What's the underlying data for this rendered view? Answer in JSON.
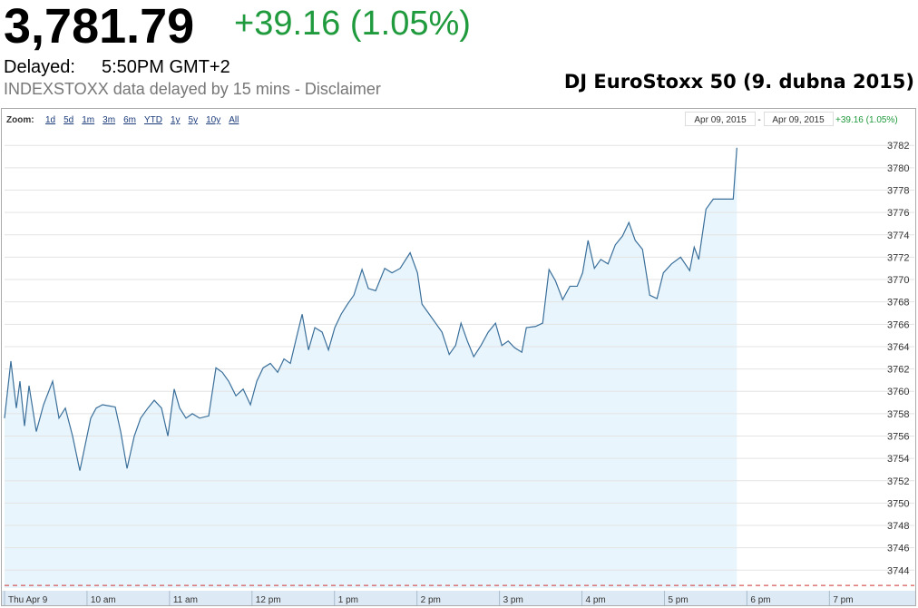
{
  "header": {
    "price": "3,781.79",
    "change": "+39.16 (1.05%)",
    "delayed_label": "Delayed:",
    "time": "5:50PM GMT+2",
    "source": "INDEXSTOXX data delayed by 15 mins - Disclaimer",
    "caption": "DJ EuroStoxx 50 (9. dubna 2015)"
  },
  "toolbar": {
    "zoom_label": "Zoom:",
    "zoom_options": [
      "1d",
      "5d",
      "1m",
      "3m",
      "6m",
      "YTD",
      "1y",
      "5y",
      "10y",
      "All"
    ],
    "range_start": "Apr 09, 2015",
    "range_sep": "-",
    "range_end": "Apr 09, 2015",
    "range_change": "+39.16 (1.05%)"
  },
  "chart_data": {
    "type": "line",
    "x": [
      9.0,
      9.077,
      9.143,
      9.187,
      9.242,
      9.297,
      9.385,
      9.473,
      9.583,
      9.66,
      9.737,
      9.825,
      9.913,
      9.989,
      10.045,
      10.111,
      10.188,
      10.265,
      10.342,
      10.408,
      10.485,
      10.573,
      10.65,
      10.738,
      10.815,
      10.903,
      10.98,
      11.057,
      11.123,
      11.2,
      11.277,
      11.365,
      11.475,
      11.563,
      11.64,
      11.717,
      11.805,
      11.893,
      11.981,
      12.058,
      12.135,
      12.223,
      12.311,
      12.388,
      12.465,
      12.542,
      12.608,
      12.685,
      12.762,
      12.85,
      12.927,
      13.004,
      13.081,
      13.158,
      13.235,
      13.334,
      13.411,
      13.499,
      13.609,
      13.697,
      13.796,
      13.917,
      14.006,
      14.061,
      14.149,
      14.226,
      14.303,
      14.391,
      14.468,
      14.534,
      14.611,
      14.688,
      14.776,
      14.864,
      14.952,
      15.029,
      15.106,
      15.183,
      15.271,
      15.326,
      15.436,
      15.524,
      15.601,
      15.678,
      15.766,
      15.854,
      15.942,
      16.008,
      16.074,
      16.151,
      16.228,
      16.316,
      16.404,
      16.492,
      16.569,
      16.646,
      16.734,
      16.822,
      16.91,
      16.987,
      17.086,
      17.196,
      17.306,
      17.361,
      17.416,
      17.504,
      17.592,
      17.834,
      17.878
    ],
    "series": [
      {
        "color": "#3a6f9a",
        "fill": "#e9f5fd",
        "values": [
          3757.6,
          3762.7,
          3758.5,
          3760.9,
          3756.9,
          3760.5,
          3756.4,
          3758.8,
          3760.9,
          3757.6,
          3758.5,
          3756.0,
          3752.9,
          3755.6,
          3757.6,
          3758.5,
          3758.8,
          3758.7,
          3758.6,
          3756.4,
          3753.1,
          3756.0,
          3757.6,
          3758.5,
          3759.2,
          3758.5,
          3756.0,
          3760.2,
          3758.5,
          3757.6,
          3758.0,
          3757.6,
          3757.8,
          3762.1,
          3761.7,
          3760.9,
          3759.6,
          3760.2,
          3758.8,
          3760.9,
          3762.1,
          3762.5,
          3761.7,
          3762.9,
          3762.5,
          3764.9,
          3766.9,
          3763.7,
          3765.7,
          3765.3,
          3763.7,
          3765.7,
          3766.9,
          3767.8,
          3768.6,
          3770.9,
          3769.2,
          3769.0,
          3771.0,
          3770.6,
          3771.0,
          3772.4,
          3770.6,
          3767.8,
          3766.9,
          3766.1,
          3765.3,
          3763.3,
          3764.1,
          3766.1,
          3764.5,
          3763.1,
          3764.1,
          3765.3,
          3766.1,
          3764.1,
          3764.5,
          3763.9,
          3763.5,
          3765.7,
          3765.8,
          3766.1,
          3770.9,
          3769.9,
          3768.2,
          3769.4,
          3769.4,
          3770.6,
          3773.5,
          3771.0,
          3771.8,
          3771.4,
          3773.1,
          3773.9,
          3775.1,
          3773.5,
          3772.7,
          3768.6,
          3768.3,
          3770.6,
          3771.4,
          3772.0,
          3770.8,
          3772.9,
          3771.8,
          3776.3,
          3777.2,
          3777.2,
          3781.79
        ]
      }
    ],
    "previous_close": 3742.63,
    "xlim": [
      9,
      20.03
    ],
    "xticks": [
      {
        "value": 9,
        "label": "Thu Apr 9"
      },
      {
        "value": 10,
        "label": "10 am"
      },
      {
        "value": 11,
        "label": "11 am"
      },
      {
        "value": 12,
        "label": "12 pm"
      },
      {
        "value": 13,
        "label": "1 pm"
      },
      {
        "value": 14,
        "label": "2 pm"
      },
      {
        "value": 15,
        "label": "3 pm"
      },
      {
        "value": 16,
        "label": "4 pm"
      },
      {
        "value": 17,
        "label": "5 pm"
      },
      {
        "value": 18,
        "label": "6 pm"
      },
      {
        "value": 19,
        "label": "7 pm"
      }
    ],
    "ylim": [
      3742.4,
      3783.4
    ],
    "yticks": [
      3744,
      3746,
      3748,
      3750,
      3752,
      3754,
      3756,
      3758,
      3760,
      3762,
      3764,
      3766,
      3768,
      3770,
      3772,
      3774,
      3776,
      3778,
      3780,
      3782
    ],
    "grid": true
  }
}
